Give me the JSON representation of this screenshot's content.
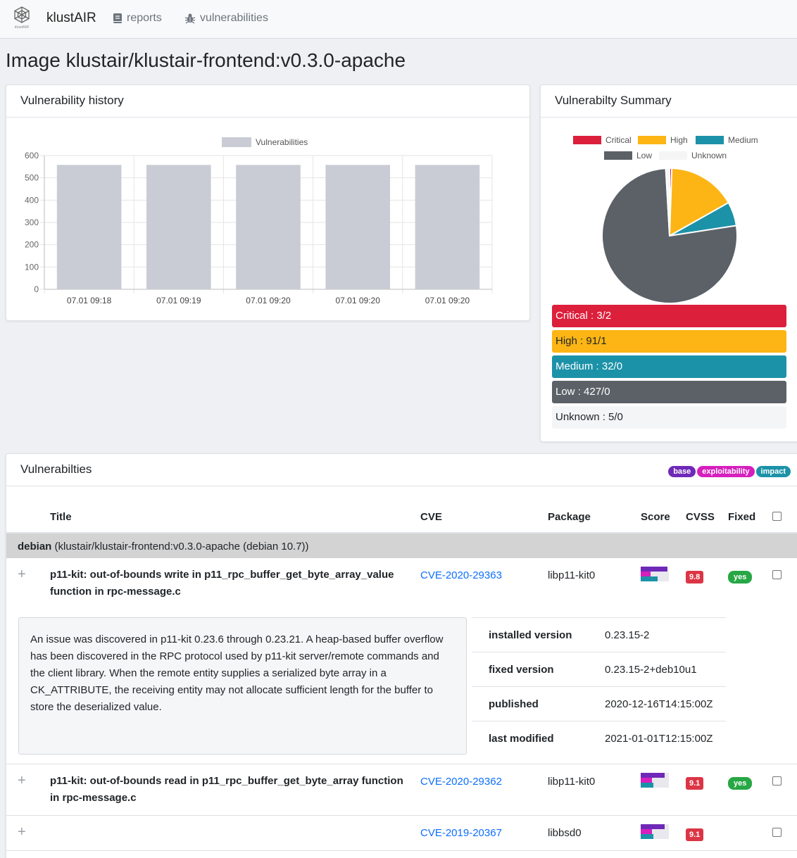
{
  "navbar": {
    "brand_caption": "klustAIR",
    "brand_name": "klustAIR",
    "reports_label": "reports",
    "vulnerabilities_label": "vulnerabilities"
  },
  "page_title": "Image klustair/klustair-frontend:v0.3.0-apache",
  "history": {
    "header": "Vulnerability history",
    "chart_data": {
      "type": "bar",
      "categories": [
        "07.01 09:18",
        "07.01 09:19",
        "07.01 09:20",
        "07.01 09:20",
        "07.01 09:20"
      ],
      "series": [
        {
          "name": "Vulnerabilities",
          "values": [
            558,
            558,
            558,
            558,
            558
          ]
        }
      ],
      "yticks": [
        0,
        100,
        200,
        300,
        400,
        500,
        600
      ],
      "ylim": [
        0,
        600
      ],
      "legend": "top-center",
      "grid": true,
      "color": "#c9ccd4"
    }
  },
  "summary": {
    "header": "Vulnerabilty Summary",
    "chart_data": {
      "type": "pie",
      "labels": [
        "Critical",
        "High",
        "Medium",
        "Low",
        "Unknown"
      ],
      "values": [
        3,
        91,
        32,
        427,
        5
      ],
      "colors": [
        "#dc1f3b",
        "#fcb515",
        "#1c92a8",
        "#5b6167",
        "#f5f5f5"
      ],
      "legend": "top-center"
    },
    "bars": [
      {
        "label": "Critical : 3/2",
        "color": "#dc1f3b",
        "text_color": "#ffffff"
      },
      {
        "label": "High : 91/1",
        "color": "#fcb515",
        "text_color": "#212529"
      },
      {
        "label": "Medium : 32/0",
        "color": "#1c92a8",
        "text_color": "#ffffff"
      },
      {
        "label": "Low : 427/0",
        "color": "#5b6167",
        "text_color": "#ffffff"
      },
      {
        "label": "Unknown : 5/0",
        "color": "#f4f5f6",
        "text_color": "#212529"
      }
    ]
  },
  "vulns": {
    "header": "Vulnerabilties",
    "badges": [
      {
        "label": "base",
        "color": "#6f29b8"
      },
      {
        "label": "exploitability",
        "color": "#d61fbe"
      },
      {
        "label": "impact",
        "color": "#1c92a8"
      }
    ],
    "columns": {
      "title": "Title",
      "cve": "CVE",
      "package": "Package",
      "score": "Score",
      "cvss": "CVSS",
      "fixed": "Fixed"
    },
    "group": {
      "name": "debian",
      "detail": "(klustair/klustair-frontend:v0.3.0-apache (debian 10.7))"
    },
    "expand_icon": "+",
    "rows": [
      {
        "title": "p11-kit: out-of-bounds write in p11_rpc_buffer_get_byte_array_value function in rpc-message.c",
        "cve": "CVE-2020-29363",
        "package": "libp11-kit0",
        "cvss": "9.8",
        "fixed": "yes"
      },
      {
        "title": "p11-kit: out-of-bounds read in p11_rpc_buffer_get_byte_array function in rpc-message.c",
        "cve": "CVE-2020-29362",
        "package": "libp11-kit0",
        "cvss": "9.1",
        "fixed": "yes"
      },
      {
        "title": "",
        "cve": "CVE-2019-20367",
        "package": "libbsd0",
        "cvss": "9.1",
        "fixed": ""
      }
    ],
    "expanded": {
      "description": "An issue was discovered in p11-kit 0.23.6 through 0.23.21. A heap-based buffer overflow has been discovered in the RPC protocol used by p11-kit server/remote commands and the client library. When the remote entity supplies a serialized byte array in a CK_ATTRIBUTE, the receiving entity may not allocate sufficient length for the buffer to store the deserialized value.",
      "details": [
        {
          "label": "installed version",
          "value": "0.23.15-2"
        },
        {
          "label": "fixed version",
          "value": "0.23.15-2+deb10u1"
        },
        {
          "label": "published",
          "value": "2020-12-16T14:15:00Z"
        },
        {
          "label": "last modified",
          "value": "2021-01-01T12:15:00Z"
        }
      ]
    }
  }
}
